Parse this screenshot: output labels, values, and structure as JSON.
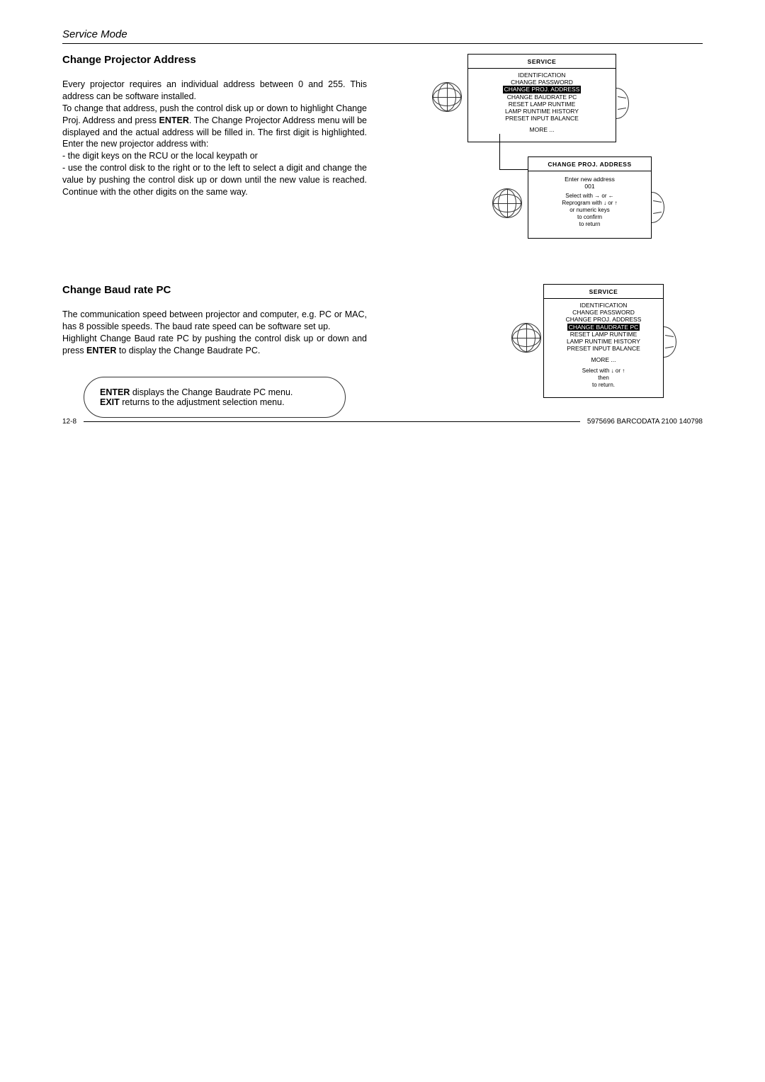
{
  "header": {
    "title": "Service Mode"
  },
  "section1": {
    "title": "Change Projector Address",
    "body": "Every projector requires an individual address between 0 and 255. This address can be software installed.\nTo change that address, push the control disk up or down to highlight Change Proj. Address and press ENTER. The Change Projector Address menu will be displayed and the actual address will be filled in. The first digit is highlighted. Enter the new projector address with:\n- the digit keys on the RCU or the local keypath or\n- use the control disk to the right or to the left to select a digit and change the value by pushing the control disk up or down until the new value is reached. Continue with the other digits on the same way.",
    "menu1": {
      "title": "SERVICE",
      "items": [
        "IDENTIFICATION",
        "CHANGE PASSWORD",
        "CHANGE PROJ. ADDRESS",
        "CHANGE BAUDRATE PC",
        "RESET LAMP RUNTIME",
        "LAMP RUNTIME HISTORY",
        "PRESET INPUT BALANCE"
      ],
      "highlight_index": 2,
      "more": "MORE ..."
    },
    "menu2": {
      "title": "CHANGE PROJ. ADDRESS",
      "prompt": "Enter new address",
      "value": "001",
      "hint": "Select with → or ←\nReprogram with ↓ or ↑\nor numeric keys\n<ENTER> to confirm\n<EXIT> to return"
    }
  },
  "section2": {
    "title": "Change Baud rate PC",
    "body": "The communication speed between projector and computer, e.g. PC or MAC, has 8 possible speeds. The baud rate speed can be software set up.\nHighlight Change Baud rate PC by pushing the control disk up or down and press ENTER to display the Change Baudrate PC.",
    "callout": "ENTER displays the Change Baudrate PC menu.\nEXIT returns to the adjustment selection menu.",
    "menu": {
      "title": "SERVICE",
      "items": [
        "IDENTIFICATION",
        "CHANGE PASSWORD",
        "CHANGE PROJ. ADDRESS",
        "CHANGE BAUDRATE PC",
        "RESET LAMP RUNTIME",
        "LAMP RUNTIME HISTORY",
        "PRESET INPUT BALANCE"
      ],
      "highlight_index": 3,
      "more": "MORE ...",
      "hint": "Select with ↓ or ↑\nthen <ENTER>\n<EXIT> to return."
    }
  },
  "footer": {
    "page": "12-8",
    "ref": "5975696 BARCODATA 2100 140798"
  }
}
